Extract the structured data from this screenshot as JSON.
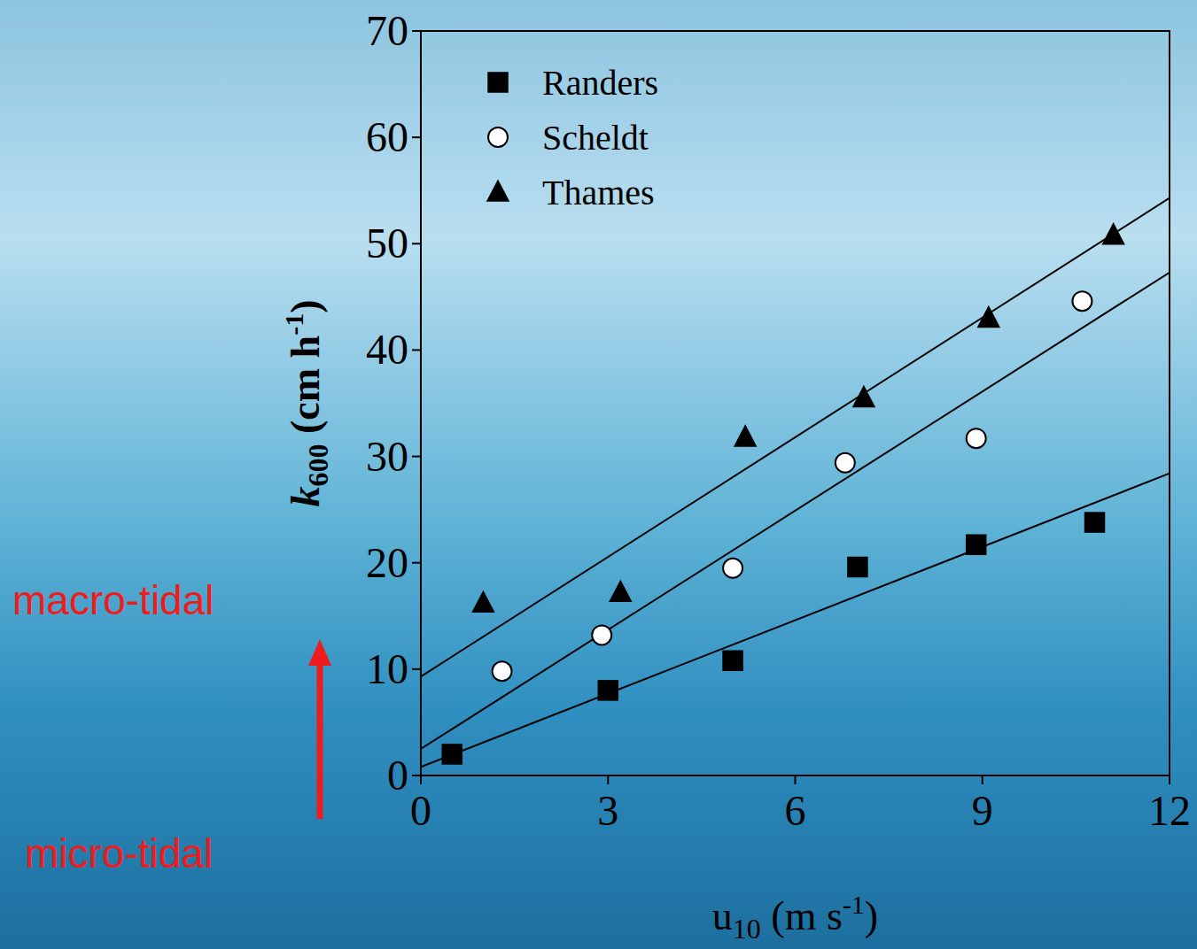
{
  "chart_data": {
    "type": "scatter",
    "xlabel": "u10 (m s-1)",
    "ylabel": "k600 (cm h-1)",
    "xlim": [
      0,
      12
    ],
    "ylim": [
      0,
      70
    ],
    "xticks": [
      0,
      3,
      6,
      9,
      12
    ],
    "yticks": [
      0,
      10,
      20,
      30,
      40,
      50,
      60,
      70
    ],
    "legend": "upper-left",
    "grid": false,
    "series": [
      {
        "name": "Randers",
        "color": "#000000",
        "marker": "square",
        "x": [
          0.5,
          3,
          5,
          7,
          8.9,
          10.8
        ],
        "values": [
          2,
          8,
          10.8,
          19.6,
          21.7,
          23.8
        ],
        "fit": {
          "x": [
            0,
            12
          ],
          "values": [
            0.8,
            28.4
          ]
        }
      },
      {
        "name": "Scheldt",
        "color": "#ffffff",
        "marker": "circle",
        "x": [
          1.3,
          2.9,
          5,
          6.8,
          8.9,
          10.6
        ],
        "values": [
          9.8,
          13.2,
          19.5,
          29.4,
          31.7,
          44.6
        ],
        "fit": {
          "x": [
            0,
            12
          ],
          "values": [
            2.5,
            47.3
          ]
        }
      },
      {
        "name": "Thames",
        "color": "#000000",
        "marker": "triangle",
        "x": [
          1,
          3.2,
          5.2,
          7.1,
          9.1,
          11.1
        ],
        "values": [
          16.2,
          17.2,
          31.8,
          35.5,
          43,
          50.8
        ],
        "fit": {
          "x": [
            0,
            12
          ],
          "values": [
            9.3,
            54.3
          ]
        }
      }
    ],
    "annotations": [
      {
        "text": "macro-tidal",
        "color": "#ee1c1c"
      },
      {
        "text": "micro-tidal",
        "color": "#ee1c1c"
      }
    ]
  }
}
